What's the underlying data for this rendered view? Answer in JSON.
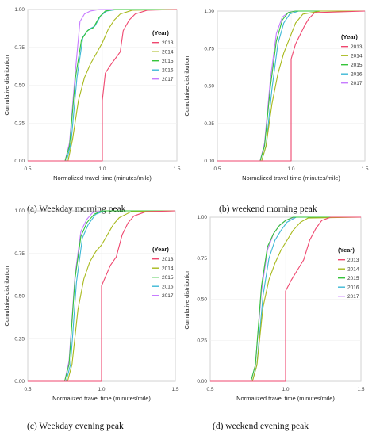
{
  "chart_data": [
    {
      "type": "line",
      "caption": "(a)  Weekday morning peak",
      "xlabel": "Normalized travel time (minutes/mile)",
      "ylabel": "Cumulative distribution",
      "xlim": [
        0.5,
        1.5
      ],
      "ylim": [
        0,
        1
      ],
      "xticks": [
        "0.5",
        "1.0",
        "1.5"
      ],
      "yticks": [
        "0.00",
        "0.25",
        "0.50",
        "0.75",
        "1.00"
      ],
      "legend": {
        "title": "(Year)",
        "position": "right"
      },
      "series": [
        {
          "name": "2013",
          "color": "#ef476f",
          "points": [
            [
              0.5,
              0
            ],
            [
              1.0,
              0
            ],
            [
              1.0,
              0.4
            ],
            [
              1.02,
              0.58
            ],
            [
              1.06,
              0.64
            ],
            [
              1.09,
              0.68
            ],
            [
              1.12,
              0.72
            ],
            [
              1.14,
              0.86
            ],
            [
              1.18,
              0.93
            ],
            [
              1.22,
              0.97
            ],
            [
              1.3,
              0.995
            ],
            [
              1.5,
              1
            ]
          ]
        },
        {
          "name": "2014",
          "color": "#a8b91c",
          "points": [
            [
              0.5,
              0
            ],
            [
              0.77,
              0
            ],
            [
              0.8,
              0.14
            ],
            [
              0.84,
              0.4
            ],
            [
              0.88,
              0.55
            ],
            [
              0.92,
              0.64
            ],
            [
              0.96,
              0.71
            ],
            [
              1.0,
              0.78
            ],
            [
              1.04,
              0.87
            ],
            [
              1.08,
              0.93
            ],
            [
              1.12,
              0.97
            ],
            [
              1.2,
              0.995
            ],
            [
              1.5,
              1
            ]
          ]
        },
        {
          "name": "2015",
          "color": "#35c43a",
          "points": [
            [
              0.5,
              0
            ],
            [
              0.75,
              0
            ],
            [
              0.78,
              0.1
            ],
            [
              0.82,
              0.55
            ],
            [
              0.86,
              0.8
            ],
            [
              0.9,
              0.86
            ],
            [
              0.94,
              0.88
            ],
            [
              0.98,
              0.95
            ],
            [
              1.02,
              0.99
            ],
            [
              1.08,
              1.0
            ],
            [
              1.5,
              1
            ]
          ]
        },
        {
          "name": "2016",
          "color": "#3db8d6",
          "points": [
            [
              0.5,
              0
            ],
            [
              0.76,
              0
            ],
            [
              0.79,
              0.12
            ],
            [
              0.83,
              0.55
            ],
            [
              0.87,
              0.82
            ],
            [
              0.91,
              0.87
            ],
            [
              0.95,
              0.89
            ],
            [
              0.99,
              0.96
            ],
            [
              1.03,
              0.99
            ],
            [
              1.1,
              1.0
            ],
            [
              1.5,
              1
            ]
          ]
        },
        {
          "name": "2017",
          "color": "#c77cff",
          "points": [
            [
              0.5,
              0
            ],
            [
              0.75,
              0
            ],
            [
              0.78,
              0.12
            ],
            [
              0.82,
              0.6
            ],
            [
              0.85,
              0.92
            ],
            [
              0.88,
              0.97
            ],
            [
              0.92,
              0.99
            ],
            [
              0.98,
              1.0
            ],
            [
              1.5,
              1
            ]
          ]
        }
      ]
    },
    {
      "type": "line",
      "caption": "(b)  weekend morning peak",
      "xlabel": "Normalized travel time (minutes/mile)",
      "ylabel": "Cumulative distribution",
      "xlim": [
        0.5,
        1.5
      ],
      "ylim": [
        0,
        1
      ],
      "xticks": [
        "0.5",
        "1.0",
        "1.5"
      ],
      "yticks": [
        "0.00",
        "0.25",
        "0.50",
        "0.75",
        "1.00"
      ],
      "legend": {
        "title": "(Year)",
        "position": "right"
      },
      "series": [
        {
          "name": "2013",
          "color": "#ef476f",
          "points": [
            [
              0.5,
              0
            ],
            [
              1.0,
              0
            ],
            [
              1.0,
              0.68
            ],
            [
              1.03,
              0.78
            ],
            [
              1.06,
              0.84
            ],
            [
              1.09,
              0.9
            ],
            [
              1.12,
              0.95
            ],
            [
              1.16,
              0.99
            ],
            [
              1.5,
              1
            ]
          ]
        },
        {
          "name": "2014",
          "color": "#a8b91c",
          "points": [
            [
              0.5,
              0
            ],
            [
              0.8,
              0
            ],
            [
              0.83,
              0.1
            ],
            [
              0.87,
              0.38
            ],
            [
              0.91,
              0.58
            ],
            [
              0.95,
              0.72
            ],
            [
              0.99,
              0.82
            ],
            [
              1.03,
              0.92
            ],
            [
              1.08,
              0.98
            ],
            [
              1.2,
              1.0
            ],
            [
              1.5,
              1
            ]
          ]
        },
        {
          "name": "2015",
          "color": "#35c43a",
          "points": [
            [
              0.5,
              0
            ],
            [
              0.79,
              0
            ],
            [
              0.82,
              0.1
            ],
            [
              0.86,
              0.5
            ],
            [
              0.9,
              0.8
            ],
            [
              0.94,
              0.94
            ],
            [
              0.98,
              0.99
            ],
            [
              1.03,
              1.0
            ],
            [
              1.5,
              1
            ]
          ]
        },
        {
          "name": "2016",
          "color": "#3db8d6",
          "points": [
            [
              0.5,
              0
            ],
            [
              0.8,
              0
            ],
            [
              0.83,
              0.1
            ],
            [
              0.87,
              0.48
            ],
            [
              0.91,
              0.78
            ],
            [
              0.95,
              0.92
            ],
            [
              0.99,
              0.98
            ],
            [
              1.05,
              1.0
            ],
            [
              1.5,
              1
            ]
          ]
        },
        {
          "name": "2017",
          "color": "#c77cff",
          "points": [
            [
              0.5,
              0
            ],
            [
              0.79,
              0
            ],
            [
              0.82,
              0.12
            ],
            [
              0.86,
              0.55
            ],
            [
              0.9,
              0.85
            ],
            [
              0.94,
              0.96
            ],
            [
              0.98,
              0.99
            ],
            [
              1.03,
              1.0
            ],
            [
              1.5,
              1
            ]
          ]
        }
      ]
    },
    {
      "type": "line",
      "caption": "(c)  Weekday evening peak",
      "xlabel": "Normalized travel time (minutes/mile)",
      "ylabel": "Cumulative distribution",
      "xlim": [
        0.5,
        1.5
      ],
      "ylim": [
        0,
        1
      ],
      "xticks": [
        "0.5",
        "1.0",
        "1.5"
      ],
      "yticks": [
        "0.00",
        "0.25",
        "0.50",
        "0.75",
        "1.00"
      ],
      "legend": {
        "title": "(Year)",
        "position": "right"
      },
      "series": [
        {
          "name": "2013",
          "color": "#ef476f",
          "points": [
            [
              0.5,
              0
            ],
            [
              1.0,
              0
            ],
            [
              1.0,
              0.56
            ],
            [
              1.03,
              0.62
            ],
            [
              1.06,
              0.68
            ],
            [
              1.1,
              0.73
            ],
            [
              1.14,
              0.86
            ],
            [
              1.18,
              0.93
            ],
            [
              1.22,
              0.97
            ],
            [
              1.3,
              0.995
            ],
            [
              1.5,
              1
            ]
          ]
        },
        {
          "name": "2014",
          "color": "#a8b91c",
          "points": [
            [
              0.5,
              0
            ],
            [
              0.77,
              0
            ],
            [
              0.8,
              0.1
            ],
            [
              0.84,
              0.42
            ],
            [
              0.88,
              0.6
            ],
            [
              0.92,
              0.7
            ],
            [
              0.96,
              0.76
            ],
            [
              1.0,
              0.8
            ],
            [
              1.04,
              0.86
            ],
            [
              1.08,
              0.92
            ],
            [
              1.12,
              0.96
            ],
            [
              1.2,
              0.995
            ],
            [
              1.5,
              1
            ]
          ]
        },
        {
          "name": "2015",
          "color": "#35c43a",
          "points": [
            [
              0.5,
              0
            ],
            [
              0.75,
              0
            ],
            [
              0.78,
              0.1
            ],
            [
              0.82,
              0.6
            ],
            [
              0.86,
              0.85
            ],
            [
              0.9,
              0.93
            ],
            [
              0.95,
              0.98
            ],
            [
              1.0,
              1.0
            ],
            [
              1.5,
              1
            ]
          ]
        },
        {
          "name": "2016",
          "color": "#3db8d6",
          "points": [
            [
              0.5,
              0
            ],
            [
              0.76,
              0
            ],
            [
              0.79,
              0.1
            ],
            [
              0.83,
              0.58
            ],
            [
              0.87,
              0.84
            ],
            [
              0.91,
              0.92
            ],
            [
              0.96,
              0.98
            ],
            [
              1.02,
              1.0
            ],
            [
              1.5,
              1
            ]
          ]
        },
        {
          "name": "2017",
          "color": "#c77cff",
          "points": [
            [
              0.5,
              0
            ],
            [
              0.75,
              0
            ],
            [
              0.78,
              0.12
            ],
            [
              0.82,
              0.62
            ],
            [
              0.86,
              0.88
            ],
            [
              0.9,
              0.95
            ],
            [
              0.94,
              0.99
            ],
            [
              1.0,
              1.0
            ],
            [
              1.5,
              1
            ]
          ]
        }
      ]
    },
    {
      "type": "line",
      "caption": "(d)  weekend evening peak",
      "xlabel": "Normalized travel time (minutes/mile)",
      "ylabel": "Cumulative distribution",
      "xlim": [
        0.5,
        1.5
      ],
      "ylim": [
        0,
        1
      ],
      "xticks": [
        "0.5",
        "1.0",
        "1.5"
      ],
      "yticks": [
        "0.00",
        "0.25",
        "0.50",
        "0.75",
        "1.00"
      ],
      "legend": {
        "title": "(Year)",
        "position": "right"
      },
      "series": [
        {
          "name": "2013",
          "color": "#ef476f",
          "points": [
            [
              0.5,
              0
            ],
            [
              1.0,
              0
            ],
            [
              1.0,
              0.55
            ],
            [
              1.04,
              0.62
            ],
            [
              1.08,
              0.68
            ],
            [
              1.12,
              0.74
            ],
            [
              1.16,
              0.86
            ],
            [
              1.2,
              0.93
            ],
            [
              1.24,
              0.98
            ],
            [
              1.3,
              1.0
            ],
            [
              1.5,
              1
            ]
          ]
        },
        {
          "name": "2014",
          "color": "#a8b91c",
          "points": [
            [
              0.5,
              0
            ],
            [
              0.78,
              0
            ],
            [
              0.81,
              0.1
            ],
            [
              0.85,
              0.45
            ],
            [
              0.89,
              0.62
            ],
            [
              0.93,
              0.72
            ],
            [
              0.97,
              0.8
            ],
            [
              1.01,
              0.86
            ],
            [
              1.05,
              0.92
            ],
            [
              1.1,
              0.97
            ],
            [
              1.15,
              0.995
            ],
            [
              1.5,
              1
            ]
          ]
        },
        {
          "name": "2015",
          "color": "#35c43a",
          "points": [
            [
              0.5,
              0
            ],
            [
              0.77,
              0
            ],
            [
              0.8,
              0.1
            ],
            [
              0.84,
              0.58
            ],
            [
              0.88,
              0.82
            ],
            [
              0.92,
              0.9
            ],
            [
              0.96,
              0.95
            ],
            [
              1.0,
              0.98
            ],
            [
              1.05,
              1.0
            ],
            [
              1.5,
              1
            ]
          ]
        },
        {
          "name": "2016",
          "color": "#3db8d6",
          "points": [
            [
              0.5,
              0
            ],
            [
              0.78,
              0
            ],
            [
              0.81,
              0.1
            ],
            [
              0.85,
              0.52
            ],
            [
              0.89,
              0.75
            ],
            [
              0.93,
              0.86
            ],
            [
              0.97,
              0.92
            ],
            [
              1.01,
              0.97
            ],
            [
              1.07,
              1.0
            ],
            [
              1.5,
              1
            ]
          ]
        },
        {
          "name": "2017",
          "color": "#c77cff",
          "points": [
            [
              0.5,
              0
            ],
            [
              0.77,
              0
            ],
            [
              0.8,
              0.1
            ],
            [
              0.84,
              0.55
            ],
            [
              0.88,
              0.8
            ],
            [
              0.92,
              0.9
            ],
            [
              0.96,
              0.95
            ],
            [
              1.0,
              0.98
            ],
            [
              1.06,
              1.0
            ],
            [
              1.5,
              1
            ]
          ]
        }
      ]
    }
  ]
}
